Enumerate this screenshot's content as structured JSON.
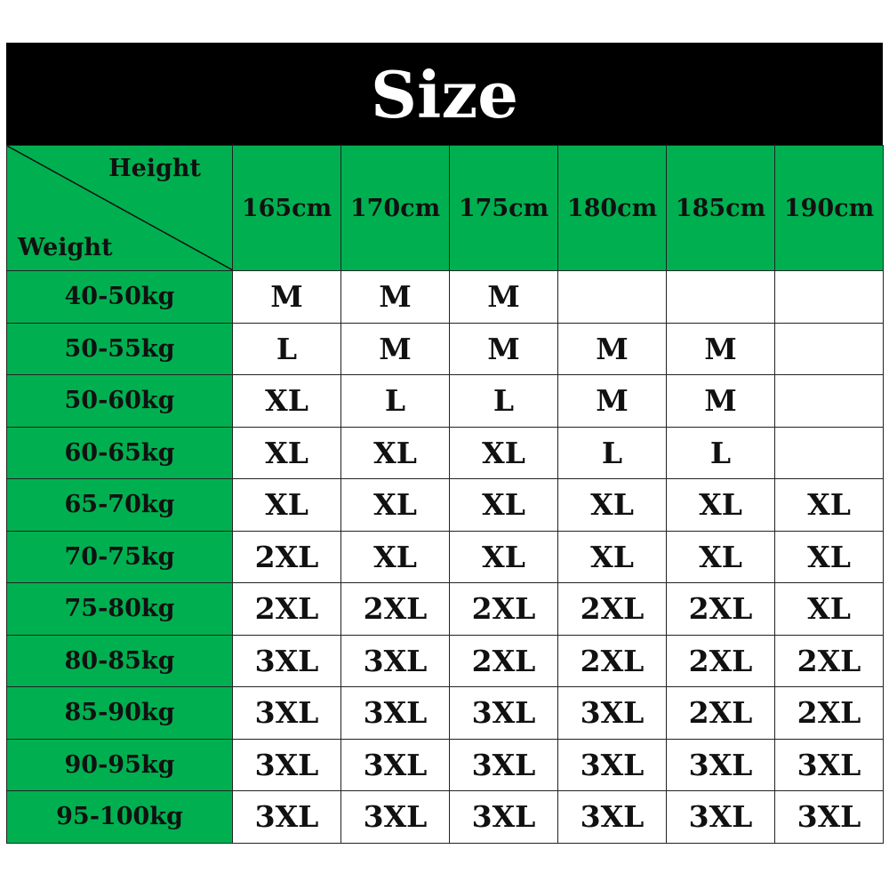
{
  "title": "Size",
  "corner": {
    "height_label": "Height",
    "weight_label": "Weight"
  },
  "heights": [
    "165cm",
    "170cm",
    "175cm",
    "180cm",
    "185cm",
    "190cm"
  ],
  "colors": {
    "header_bg": "#000000",
    "green": "#00B050"
  },
  "rows": [
    {
      "weight": "40-50kg",
      "sizes": [
        "M",
        "M",
        "M",
        "",
        "",
        ""
      ]
    },
    {
      "weight": "50-55kg",
      "sizes": [
        "L",
        "M",
        "M",
        "M",
        "M",
        ""
      ]
    },
    {
      "weight": "50-60kg",
      "sizes": [
        "XL",
        "L",
        "L",
        "M",
        "M",
        ""
      ]
    },
    {
      "weight": "60-65kg",
      "sizes": [
        "XL",
        "XL",
        "XL",
        "L",
        "L",
        ""
      ]
    },
    {
      "weight": "65-70kg",
      "sizes": [
        "XL",
        "XL",
        "XL",
        "XL",
        "XL",
        "XL"
      ]
    },
    {
      "weight": "70-75kg",
      "sizes": [
        "2XL",
        "XL",
        "XL",
        "XL",
        "XL",
        "XL"
      ]
    },
    {
      "weight": "75-80kg",
      "sizes": [
        "2XL",
        "2XL",
        "2XL",
        "2XL",
        "2XL",
        "XL"
      ]
    },
    {
      "weight": "80-85kg",
      "sizes": [
        "3XL",
        "3XL",
        "2XL",
        "2XL",
        "2XL",
        "2XL"
      ]
    },
    {
      "weight": "85-90kg",
      "sizes": [
        "3XL",
        "3XL",
        "3XL",
        "3XL",
        "2XL",
        "2XL"
      ]
    },
    {
      "weight": "90-95kg",
      "sizes": [
        "3XL",
        "3XL",
        "3XL",
        "3XL",
        "3XL",
        "3XL"
      ]
    },
    {
      "weight": "95-100kg",
      "sizes": [
        "3XL",
        "3XL",
        "3XL",
        "3XL",
        "3XL",
        "3XL"
      ]
    }
  ]
}
